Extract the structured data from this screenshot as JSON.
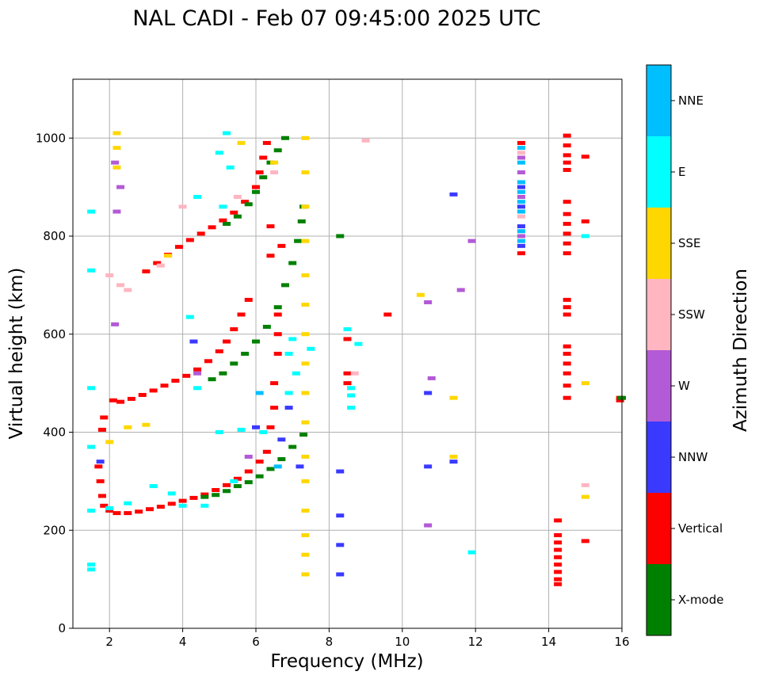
{
  "chart_data": {
    "type": "scatter",
    "title": "NAL CADI - Feb 07 09:45:00 2025 UTC",
    "xlabel": "Frequency (MHz)",
    "ylabel": "Virtual height (km)",
    "xlim": [
      1,
      16
    ],
    "ylim": [
      0,
      1120
    ],
    "xticks": [
      2,
      4,
      6,
      8,
      10,
      12,
      14,
      16
    ],
    "yticks": [
      0,
      200,
      400,
      600,
      800,
      1000
    ],
    "grid": true,
    "colorbar": {
      "label": "Azimuth Direction",
      "categories": [
        {
          "name": "X-mode",
          "color": "#008000"
        },
        {
          "name": "Vertical",
          "color": "#ff0000"
        },
        {
          "name": "NNW",
          "color": "#3a3aff"
        },
        {
          "name": "W",
          "color": "#b35ad6"
        },
        {
          "name": "SSW",
          "color": "#ffb6c1"
        },
        {
          "name": "SSE",
          "color": "#ffd700"
        },
        {
          "name": "E",
          "color": "#00ffff"
        },
        {
          "name": "NNE",
          "color": "#00bfff"
        }
      ]
    },
    "series": [
      {
        "name": "Vertical",
        "color": "#ff0000",
        "points": [
          [
            1.7,
            330
          ],
          [
            1.75,
            300
          ],
          [
            1.8,
            270
          ],
          [
            1.85,
            250
          ],
          [
            2.0,
            240
          ],
          [
            2.2,
            235
          ],
          [
            2.5,
            235
          ],
          [
            2.8,
            238
          ],
          [
            3.1,
            243
          ],
          [
            3.4,
            248
          ],
          [
            3.7,
            254
          ],
          [
            4.0,
            260
          ],
          [
            4.3,
            266
          ],
          [
            4.6,
            273
          ],
          [
            4.9,
            282
          ],
          [
            5.2,
            292
          ],
          [
            5.5,
            305
          ],
          [
            5.8,
            320
          ],
          [
            6.1,
            340
          ],
          [
            6.3,
            360
          ],
          [
            1.8,
            405
          ],
          [
            1.85,
            430
          ],
          [
            2.1,
            465
          ],
          [
            2.3,
            462
          ],
          [
            2.6,
            468
          ],
          [
            2.9,
            476
          ],
          [
            3.2,
            485
          ],
          [
            3.5,
            495
          ],
          [
            3.8,
            505
          ],
          [
            4.1,
            515
          ],
          [
            4.4,
            528
          ],
          [
            4.7,
            545
          ],
          [
            5.0,
            565
          ],
          [
            5.2,
            585
          ],
          [
            5.4,
            610
          ],
          [
            5.6,
            640
          ],
          [
            5.8,
            670
          ],
          [
            3.0,
            728
          ],
          [
            3.3,
            745
          ],
          [
            3.6,
            762
          ],
          [
            3.9,
            778
          ],
          [
            4.2,
            792
          ],
          [
            4.5,
            805
          ],
          [
            4.8,
            818
          ],
          [
            5.1,
            832
          ],
          [
            5.4,
            848
          ],
          [
            5.7,
            870
          ],
          [
            6.0,
            900
          ],
          [
            6.1,
            930
          ],
          [
            6.2,
            960
          ],
          [
            6.3,
            990
          ],
          [
            6.4,
            820
          ],
          [
            6.4,
            760
          ],
          [
            6.7,
            780
          ],
          [
            6.6,
            640
          ],
          [
            6.6,
            600
          ],
          [
            6.6,
            560
          ],
          [
            6.5,
            500
          ],
          [
            6.5,
            450
          ],
          [
            6.4,
            410
          ],
          [
            14.25,
            90
          ],
          [
            14.25,
            100
          ],
          [
            14.25,
            115
          ],
          [
            14.25,
            130
          ],
          [
            14.25,
            145
          ],
          [
            14.25,
            160
          ],
          [
            14.25,
            175
          ],
          [
            14.25,
            190
          ],
          [
            14.25,
            220
          ],
          [
            14.5,
            470
          ],
          [
            14.5,
            495
          ],
          [
            14.5,
            520
          ],
          [
            14.5,
            540
          ],
          [
            14.5,
            560
          ],
          [
            14.5,
            575
          ],
          [
            14.5,
            640
          ],
          [
            14.5,
            655
          ],
          [
            14.5,
            670
          ],
          [
            14.5,
            765
          ],
          [
            14.5,
            785
          ],
          [
            14.5,
            805
          ],
          [
            14.5,
            825
          ],
          [
            14.5,
            845
          ],
          [
            14.5,
            870
          ],
          [
            14.5,
            935
          ],
          [
            14.5,
            950
          ],
          [
            14.5,
            965
          ],
          [
            14.5,
            985
          ],
          [
            14.5,
            1005
          ],
          [
            15.95,
            465
          ],
          [
            15.95,
            470
          ],
          [
            15.0,
            178
          ],
          [
            15.0,
            830
          ],
          [
            15.0,
            962
          ],
          [
            13.25,
            765
          ],
          [
            13.25,
            990
          ],
          [
            9.6,
            640
          ],
          [
            8.5,
            590
          ],
          [
            8.5,
            520
          ],
          [
            8.5,
            500
          ]
        ]
      },
      {
        "name": "X-mode",
        "color": "#008000",
        "points": [
          [
            4.6,
            268
          ],
          [
            4.9,
            272
          ],
          [
            5.2,
            280
          ],
          [
            5.5,
            290
          ],
          [
            5.8,
            298
          ],
          [
            6.1,
            310
          ],
          [
            6.4,
            325
          ],
          [
            6.7,
            345
          ],
          [
            7.0,
            370
          ],
          [
            7.3,
            395
          ],
          [
            4.8,
            508
          ],
          [
            5.1,
            520
          ],
          [
            5.4,
            540
          ],
          [
            5.7,
            560
          ],
          [
            6.0,
            585
          ],
          [
            6.3,
            615
          ],
          [
            6.6,
            655
          ],
          [
            6.8,
            700
          ],
          [
            7.0,
            745
          ],
          [
            7.15,
            790
          ],
          [
            7.25,
            830
          ],
          [
            7.3,
            860
          ],
          [
            5.2,
            825
          ],
          [
            5.5,
            840
          ],
          [
            5.8,
            865
          ],
          [
            6.0,
            890
          ],
          [
            6.2,
            920
          ],
          [
            6.4,
            950
          ],
          [
            6.6,
            975
          ],
          [
            6.8,
            1000
          ],
          [
            16.0,
            470
          ],
          [
            8.3,
            800
          ]
        ]
      },
      {
        "name": "NNW",
        "color": "#3a3aff",
        "points": [
          [
            1.75,
            340
          ],
          [
            4.3,
            585
          ],
          [
            6.0,
            410
          ],
          [
            6.7,
            385
          ],
          [
            6.9,
            450
          ],
          [
            7.2,
            330
          ],
          [
            8.3,
            320
          ],
          [
            8.3,
            230
          ],
          [
            8.3,
            170
          ],
          [
            8.3,
            110
          ],
          [
            10.7,
            330
          ],
          [
            11.4,
            340
          ],
          [
            11.4,
            885
          ],
          [
            10.7,
            480
          ],
          [
            13.25,
            900
          ],
          [
            13.25,
            860
          ],
          [
            13.25,
            820
          ],
          [
            13.25,
            780
          ]
        ]
      },
      {
        "name": "W",
        "color": "#b35ad6",
        "points": [
          [
            2.2,
            850
          ],
          [
            2.3,
            900
          ],
          [
            2.15,
            950
          ],
          [
            2.15,
            620
          ],
          [
            4.4,
            520
          ],
          [
            5.8,
            350
          ],
          [
            10.7,
            210
          ],
          [
            10.8,
            510
          ],
          [
            11.9,
            790
          ],
          [
            10.7,
            665
          ],
          [
            11.6,
            690
          ],
          [
            13.25,
            960
          ],
          [
            13.25,
            930
          ],
          [
            13.25,
            880
          ],
          [
            13.25,
            800
          ]
        ]
      },
      {
        "name": "SSW",
        "color": "#ffb6c1",
        "points": [
          [
            2.0,
            720
          ],
          [
            2.3,
            700
          ],
          [
            2.5,
            690
          ],
          [
            3.4,
            740
          ],
          [
            4.0,
            860
          ],
          [
            5.5,
            880
          ],
          [
            6.5,
            930
          ],
          [
            9.0,
            995
          ],
          [
            8.7,
            520
          ],
          [
            15.0,
            292
          ],
          [
            13.25,
            970
          ],
          [
            13.25,
            840
          ]
        ]
      },
      {
        "name": "SSE",
        "color": "#ffd700",
        "points": [
          [
            2.2,
            1010
          ],
          [
            2.2,
            980
          ],
          [
            2.2,
            940
          ],
          [
            2.0,
            380
          ],
          [
            2.5,
            410
          ],
          [
            3.0,
            415
          ],
          [
            3.6,
            760
          ],
          [
            5.6,
            990
          ],
          [
            7.35,
            110
          ],
          [
            7.35,
            150
          ],
          [
            7.35,
            190
          ],
          [
            7.35,
            240
          ],
          [
            7.35,
            300
          ],
          [
            7.35,
            350
          ],
          [
            7.35,
            420
          ],
          [
            7.35,
            480
          ],
          [
            7.35,
            540
          ],
          [
            7.35,
            600
          ],
          [
            7.35,
            660
          ],
          [
            7.35,
            720
          ],
          [
            7.35,
            790
          ],
          [
            7.35,
            860
          ],
          [
            7.35,
            930
          ],
          [
            7.35,
            1000
          ],
          [
            11.4,
            470
          ],
          [
            11.4,
            350
          ],
          [
            15.0,
            268
          ],
          [
            15.0,
            500
          ],
          [
            10.5,
            680
          ],
          [
            6.5,
            950
          ]
        ]
      },
      {
        "name": "E",
        "color": "#00ffff",
        "points": [
          [
            1.5,
            120
          ],
          [
            1.5,
            130
          ],
          [
            1.5,
            240
          ],
          [
            1.5,
            370
          ],
          [
            1.5,
            490
          ],
          [
            1.5,
            730
          ],
          [
            1.5,
            850
          ],
          [
            2.0,
            245
          ],
          [
            2.5,
            255
          ],
          [
            3.2,
            290
          ],
          [
            3.7,
            275
          ],
          [
            4.0,
            250
          ],
          [
            4.6,
            250
          ],
          [
            5.4,
            300
          ],
          [
            5.0,
            400
          ],
          [
            4.4,
            490
          ],
          [
            4.2,
            635
          ],
          [
            5.1,
            860
          ],
          [
            4.4,
            880
          ],
          [
            5.3,
            940
          ],
          [
            5.0,
            970
          ],
          [
            5.2,
            1010
          ],
          [
            6.9,
            480
          ],
          [
            7.1,
            520
          ],
          [
            6.9,
            560
          ],
          [
            7.0,
            590
          ],
          [
            7.5,
            570
          ],
          [
            8.6,
            450
          ],
          [
            8.6,
            475
          ],
          [
            8.6,
            490
          ],
          [
            8.5,
            610
          ],
          [
            8.8,
            580
          ],
          [
            11.9,
            155
          ],
          [
            15.0,
            800
          ],
          [
            5.6,
            405
          ],
          [
            6.2,
            400
          ]
        ]
      },
      {
        "name": "NNE",
        "color": "#00bfff",
        "points": [
          [
            13.25,
            790
          ],
          [
            13.25,
            810
          ],
          [
            13.25,
            850
          ],
          [
            13.25,
            870
          ],
          [
            13.25,
            890
          ],
          [
            13.25,
            910
          ],
          [
            13.25,
            950
          ],
          [
            13.25,
            980
          ],
          [
            6.6,
            330
          ],
          [
            6.1,
            480
          ]
        ]
      }
    ]
  }
}
